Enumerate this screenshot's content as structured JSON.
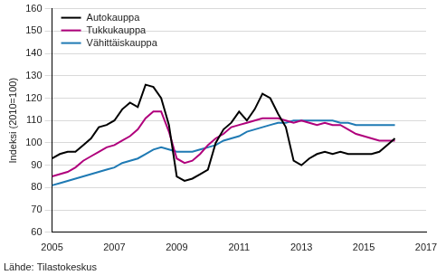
{
  "chart_data": {
    "type": "line",
    "y_label": "Indeksi (2010=100)",
    "source": "Lähde: Tilastokeskus",
    "x": [
      2005,
      2005.25,
      2005.5,
      2005.75,
      2006,
      2006.25,
      2006.5,
      2006.75,
      2007,
      2007.25,
      2007.5,
      2007.75,
      2008,
      2008.25,
      2008.5,
      2008.75,
      2009,
      2009.25,
      2009.5,
      2009.75,
      2010,
      2010.25,
      2010.5,
      2010.75,
      2011,
      2011.25,
      2011.5,
      2011.75,
      2012,
      2012.25,
      2012.5,
      2012.75,
      2013,
      2013.25,
      2013.5,
      2013.75,
      2014,
      2014.25,
      2014.5,
      2014.75,
      2015,
      2015.25,
      2015.5,
      2015.75,
      2016
    ],
    "series": [
      {
        "name": "Autokauppa",
        "color": "#000000",
        "values": [
          93,
          95,
          96,
          96,
          99,
          102,
          107,
          108,
          110,
          115,
          118,
          116,
          126,
          125,
          120,
          108,
          85,
          83,
          84,
          86,
          88,
          100,
          106,
          109,
          114,
          110,
          115,
          122,
          120,
          113,
          107,
          92,
          90,
          93,
          95,
          96,
          95,
          96,
          95,
          95,
          95,
          95,
          96,
          99,
          102
        ]
      },
      {
        "name": "Tukkukauppa",
        "color": "#b0007c",
        "values": [
          85,
          86,
          87,
          89,
          92,
          94,
          96,
          98,
          99,
          101,
          103,
          106,
          111,
          114,
          114,
          105,
          93,
          91,
          92,
          95,
          99,
          102,
          104,
          107,
          108,
          109,
          110,
          111,
          111,
          111,
          110,
          109,
          110,
          109,
          108,
          109,
          108,
          108,
          106,
          104,
          103,
          102,
          101,
          101,
          101
        ]
      },
      {
        "name": "Vähittäiskauppa",
        "color": "#1f7ab4",
        "values": [
          81,
          82,
          83,
          84,
          85,
          86,
          87,
          88,
          89,
          91,
          92,
          93,
          95,
          97,
          98,
          97,
          96,
          96,
          96,
          97,
          98,
          99,
          101,
          102,
          103,
          105,
          106,
          107,
          108,
          109,
          109,
          110,
          110,
          110,
          110,
          110,
          110,
          109,
          109,
          108,
          108,
          108,
          108,
          108,
          108
        ]
      }
    ],
    "xlim": [
      2005,
      2017
    ],
    "xticks": [
      2005,
      2007,
      2009,
      2011,
      2013,
      2015,
      2017
    ],
    "ylim": [
      60,
      160
    ],
    "yticks": [
      60,
      70,
      80,
      90,
      100,
      110,
      120,
      130,
      140,
      150,
      160
    ],
    "grid": true,
    "legend": "upper left"
  }
}
